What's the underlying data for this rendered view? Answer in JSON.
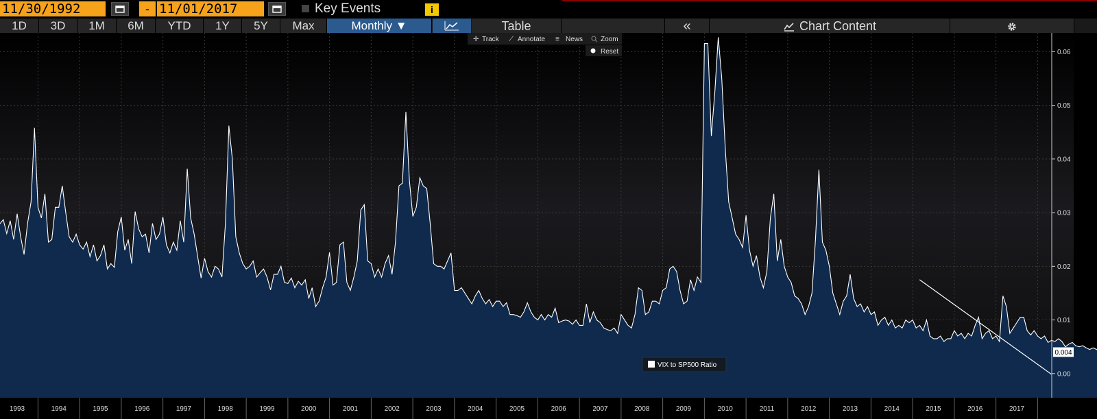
{
  "toolbar": {
    "start_date": "11/30/1992",
    "dash": "-",
    "end_date": "11/01/2017",
    "key_events": "Key Events",
    "info": "i"
  },
  "ranges": [
    "1D",
    "3D",
    "1M",
    "6M",
    "YTD",
    "1Y",
    "5Y",
    "Max"
  ],
  "frequency": "Monthly ▼",
  "table_label": "Table",
  "collapse_label": "«",
  "chart_content_label": "Chart Content",
  "chart_tools": {
    "track": "Track",
    "annotate": "Annotate",
    "news": "News",
    "zoom": "Zoom",
    "reset": "Reset"
  },
  "colors": {
    "accent_orange": "#f7a21b",
    "active_blue": "#2b5a8f",
    "area_fill": "#0f2a4d",
    "line": "#ffffff",
    "background": "#000000"
  },
  "chart_data": {
    "type": "area",
    "series": [
      {
        "name": "VIX to SP500 Ratio",
        "start": "1992-11",
        "values": [
          0.0285,
          0.0298,
          0.0275,
          0.0279,
          0.0287,
          0.0261,
          0.0285,
          0.025,
          0.0298,
          0.0255,
          0.0222,
          0.028,
          0.032,
          0.0458,
          0.031,
          0.029,
          0.0335,
          0.0245,
          0.025,
          0.031,
          0.031,
          0.035,
          0.03,
          0.0255,
          0.0245,
          0.026,
          0.024,
          0.0232,
          0.0245,
          0.0218,
          0.024,
          0.021,
          0.022,
          0.024,
          0.0195,
          0.0205,
          0.0198,
          0.0265,
          0.0292,
          0.023,
          0.025,
          0.0205,
          0.0302,
          0.027,
          0.0255,
          0.026,
          0.0225,
          0.028,
          0.025,
          0.026,
          0.0292,
          0.024,
          0.0225,
          0.0245,
          0.023,
          0.0285,
          0.0245,
          0.0382,
          0.029,
          0.026,
          0.0218,
          0.0178,
          0.0215,
          0.019,
          0.018,
          0.02,
          0.0195,
          0.018,
          0.028,
          0.0462,
          0.04,
          0.0255,
          0.0225,
          0.0205,
          0.0195,
          0.02,
          0.021,
          0.018,
          0.0188,
          0.0195,
          0.018,
          0.0156,
          0.0185,
          0.0185,
          0.02,
          0.017,
          0.0168,
          0.0178,
          0.016,
          0.0172,
          0.0165,
          0.0175,
          0.014,
          0.016,
          0.0125,
          0.0135,
          0.016,
          0.018,
          0.0226,
          0.0165,
          0.017,
          0.024,
          0.0245,
          0.017,
          0.0155,
          0.018,
          0.021,
          0.0305,
          0.0315,
          0.021,
          0.0205,
          0.018,
          0.0195,
          0.018,
          0.0205,
          0.022,
          0.0185,
          0.0245,
          0.035,
          0.0355,
          0.0488,
          0.036,
          0.0293,
          0.031,
          0.0365,
          0.035,
          0.0345,
          0.028,
          0.0205,
          0.02,
          0.02,
          0.0195,
          0.021,
          0.0225,
          0.0155,
          0.0155,
          0.016,
          0.015,
          0.014,
          0.013,
          0.0145,
          0.0155,
          0.014,
          0.013,
          0.0138,
          0.0125,
          0.0135,
          0.0135,
          0.0125,
          0.0132,
          0.011,
          0.011,
          0.0108,
          0.0105,
          0.0115,
          0.0132,
          0.0115,
          0.0105,
          0.01,
          0.011,
          0.01,
          0.011,
          0.0105,
          0.0122,
          0.0095,
          0.0098,
          0.01,
          0.0098,
          0.0092,
          0.01,
          0.009,
          0.009,
          0.013,
          0.0095,
          0.0115,
          0.01,
          0.0095,
          0.0085,
          0.0082,
          0.008,
          0.0085,
          0.0075,
          0.011,
          0.01,
          0.009,
          0.0085,
          0.011,
          0.016,
          0.0155,
          0.011,
          0.0115,
          0.0135,
          0.0135,
          0.013,
          0.0155,
          0.016,
          0.0195,
          0.02,
          0.019,
          0.0155,
          0.013,
          0.0135,
          0.0175,
          0.0155,
          0.018,
          0.017,
          0.0615,
          0.0615,
          0.0443,
          0.0525,
          0.0627,
          0.055,
          0.042,
          0.032,
          0.029,
          0.026,
          0.025,
          0.0235,
          0.0295,
          0.023,
          0.02,
          0.022,
          0.018,
          0.016,
          0.019,
          0.029,
          0.0335,
          0.021,
          0.025,
          0.02,
          0.018,
          0.017,
          0.0145,
          0.014,
          0.013,
          0.011,
          0.0125,
          0.015,
          0.025,
          0.038,
          0.0245,
          0.023,
          0.02,
          0.015,
          0.013,
          0.011,
          0.0135,
          0.0145,
          0.0185,
          0.014,
          0.0125,
          0.013,
          0.0115,
          0.0125,
          0.011,
          0.0115,
          0.009,
          0.01,
          0.0105,
          0.009,
          0.01,
          0.0085,
          0.009,
          0.0085,
          0.01,
          0.0095,
          0.01,
          0.0085,
          0.009,
          0.008,
          0.01,
          0.007,
          0.0065,
          0.0065,
          0.007,
          0.006,
          0.0065,
          0.0065,
          0.008,
          0.007,
          0.0075,
          0.0065,
          0.0075,
          0.007,
          0.009,
          0.0105,
          0.0065,
          0.0075,
          0.008,
          0.0065,
          0.007,
          0.006,
          0.0145,
          0.0125,
          0.0075,
          0.0085,
          0.0095,
          0.0105,
          0.0105,
          0.008,
          0.0072,
          0.008,
          0.007,
          0.0065,
          0.007,
          0.0058,
          0.0062,
          0.006,
          0.0065,
          0.006,
          0.005,
          0.0055,
          0.0058,
          0.0052,
          0.005,
          0.0052,
          0.0048,
          0.0045,
          0.0048,
          0.0045,
          0.0043,
          0.0045,
          0.0042,
          0.0043
        ]
      }
    ],
    "x_range": [
      "1992-11",
      "2017-11"
    ],
    "xticks": [
      "1993",
      "1994",
      "1995",
      "1996",
      "1997",
      "1998",
      "1999",
      "2000",
      "2001",
      "2002",
      "2003",
      "2004",
      "2005",
      "2006",
      "2007",
      "2008",
      "2009",
      "2010",
      "2011",
      "2012",
      "2013",
      "2014",
      "2015",
      "2016",
      "2017"
    ],
    "yticks": [
      "0.00",
      "0.01",
      "0.02",
      "0.03",
      "0.04",
      "0.05",
      "0.06"
    ],
    "ylim": [
      -0.0045,
      0.0635
    ],
    "last_value_label": "0.004",
    "trendline": {
      "from": {
        "x": "2015-03",
        "y": 0.0175
      },
      "to": {
        "x": "2017-11",
        "y": 0.0022
      }
    },
    "legend": "bottom-center",
    "grid": true
  }
}
